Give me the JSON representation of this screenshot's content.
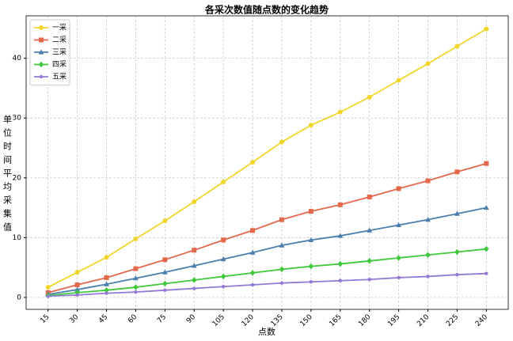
{
  "chart_data": {
    "type": "line",
    "title": "各采次数值随点数的变化趋势",
    "x_label": "点数",
    "y_label": "单位时间平均采集值",
    "x": [
      15,
      30,
      45,
      60,
      75,
      90,
      105,
      120,
      135,
      150,
      165,
      180,
      195,
      210,
      225,
      240
    ],
    "xlim": [
      3.75,
      251.25
    ],
    "xticks": [
      15,
      30,
      45,
      60,
      75,
      90,
      105,
      120,
      135,
      150,
      165,
      180,
      195,
      210,
      225,
      240
    ],
    "ylim": [
      -2.0,
      47.1
    ],
    "yticks": [
      0,
      10,
      20,
      30,
      40
    ],
    "grid": true,
    "legend": "upper left",
    "series": [
      {
        "name": "一采",
        "color": "#f2d52a",
        "marker": "circle",
        "values": [
          1.7,
          4.2,
          6.7,
          9.8,
          12.8,
          16.0,
          19.3,
          22.6,
          26.0,
          28.8,
          31.0,
          33.5,
          36.3,
          39.1,
          42.0,
          44.9
        ]
      },
      {
        "name": "二采",
        "color": "#e4694b",
        "marker": "square",
        "values": [
          0.8,
          2.1,
          3.3,
          4.8,
          6.3,
          7.9,
          9.6,
          11.2,
          13.0,
          14.4,
          15.5,
          16.8,
          18.2,
          19.5,
          21.0,
          22.4
        ]
      },
      {
        "name": "三采",
        "color": "#4b7fae",
        "marker": "triangle",
        "values": [
          0.5,
          1.3,
          2.2,
          3.2,
          4.2,
          5.3,
          6.4,
          7.5,
          8.7,
          9.6,
          10.3,
          11.2,
          12.1,
          13.0,
          14.0,
          15.0
        ]
      },
      {
        "name": "四采",
        "color": "#3ec93a",
        "marker": "diamond",
        "values": [
          0.3,
          0.8,
          1.2,
          1.7,
          2.3,
          2.9,
          3.5,
          4.1,
          4.7,
          5.2,
          5.6,
          6.1,
          6.6,
          7.1,
          7.6,
          8.1
        ]
      },
      {
        "name": "五采",
        "color": "#9379d6",
        "marker": "point",
        "values": [
          0.2,
          0.4,
          0.7,
          0.9,
          1.2,
          1.5,
          1.8,
          2.1,
          2.4,
          2.6,
          2.8,
          3.0,
          3.3,
          3.5,
          3.8,
          4.0
        ]
      }
    ]
  }
}
